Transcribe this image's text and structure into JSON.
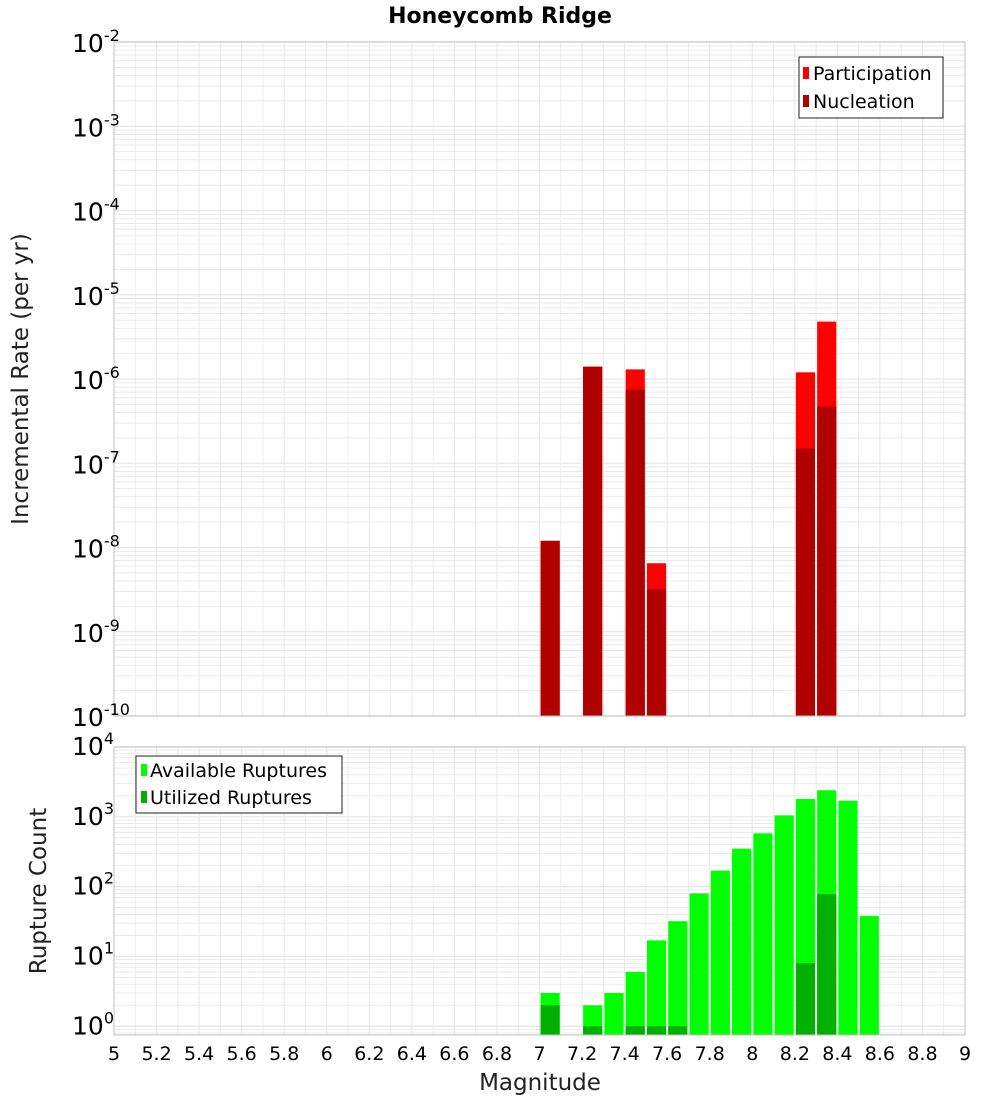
{
  "title": "Honeycomb Ridge",
  "colors": {
    "participation": "#ff0000",
    "nucleation": "#b00000",
    "available": "#00ff00",
    "utilized": "#00b000",
    "grid": "#e6e6e6",
    "frame": "#c0c0c0"
  },
  "chart_data": [
    {
      "type": "bar",
      "name": "rate",
      "ylabel": "Incremental Rate (per yr)",
      "yscale": "log",
      "ylim": [
        1e-10,
        0.01
      ],
      "xlim": [
        5,
        9
      ],
      "y_tick_exponents": [
        "-10",
        "-9",
        "-8",
        "-7",
        "-6",
        "-5",
        "-4",
        "-3",
        "-2"
      ],
      "grid": true,
      "legend_position": "top-right",
      "series": [
        {
          "name": "Participation",
          "points": [
            {
              "x": 7.05,
              "y": 1.2e-08
            },
            {
              "x": 7.25,
              "y": 1.4e-06
            },
            {
              "x": 7.45,
              "y": 1.3e-06
            },
            {
              "x": 7.55,
              "y": 6.5e-09
            },
            {
              "x": 8.25,
              "y": 1.2e-06
            },
            {
              "x": 8.35,
              "y": 4.8e-06
            }
          ]
        },
        {
          "name": "Nucleation",
          "points": [
            {
              "x": 7.05,
              "y": 1.2e-08
            },
            {
              "x": 7.25,
              "y": 1.4e-06
            },
            {
              "x": 7.45,
              "y": 7.5e-07
            },
            {
              "x": 7.55,
              "y": 3.2e-09
            },
            {
              "x": 8.25,
              "y": 1.5e-07
            },
            {
              "x": 8.35,
              "y": 4.7e-07
            }
          ]
        }
      ]
    },
    {
      "type": "bar",
      "name": "count",
      "xlabel": "Magnitude",
      "ylabel": "Rupture Count",
      "yscale": "log",
      "ylim": [
        0.75,
        10000
      ],
      "xlim": [
        5,
        9
      ],
      "y_tick_exponents": [
        "0",
        "1",
        "2",
        "3",
        "4"
      ],
      "x_ticks": [
        "5",
        "5.2",
        "5.4",
        "5.6",
        "5.8",
        "6",
        "6.2",
        "6.4",
        "6.6",
        "6.8",
        "7",
        "7.2",
        "7.4",
        "7.6",
        "7.8",
        "8",
        "8.2",
        "8.4",
        "8.6",
        "8.8",
        "9"
      ],
      "grid": true,
      "legend_position": "top-left",
      "series": [
        {
          "name": "Available Ruptures",
          "points": [
            {
              "x": 7.05,
              "y": 3
            },
            {
              "x": 7.25,
              "y": 2
            },
            {
              "x": 7.35,
              "y": 3
            },
            {
              "x": 7.45,
              "y": 6
            },
            {
              "x": 7.55,
              "y": 17
            },
            {
              "x": 7.65,
              "y": 32
            },
            {
              "x": 7.75,
              "y": 80
            },
            {
              "x": 7.85,
              "y": 170
            },
            {
              "x": 7.95,
              "y": 350
            },
            {
              "x": 8.05,
              "y": 580
            },
            {
              "x": 8.15,
              "y": 1050
            },
            {
              "x": 8.25,
              "y": 1800
            },
            {
              "x": 8.35,
              "y": 2400
            },
            {
              "x": 8.45,
              "y": 1700
            },
            {
              "x": 8.55,
              "y": 38
            }
          ]
        },
        {
          "name": "Utilized Ruptures",
          "points": [
            {
              "x": 7.05,
              "y": 2
            },
            {
              "x": 7.25,
              "y": 1
            },
            {
              "x": 7.45,
              "y": 1
            },
            {
              "x": 7.55,
              "y": 1
            },
            {
              "x": 7.65,
              "y": 1
            },
            {
              "x": 8.25,
              "y": 8
            },
            {
              "x": 8.35,
              "y": 78
            }
          ]
        }
      ]
    }
  ]
}
